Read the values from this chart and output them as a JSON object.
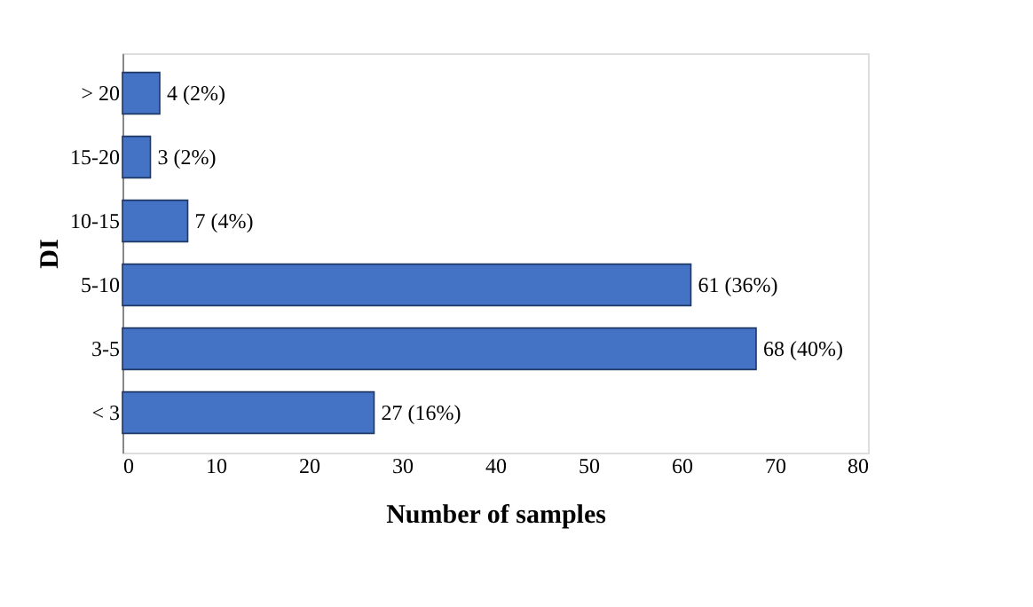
{
  "chart_data": {
    "type": "bar",
    "orientation": "horizontal",
    "ylabel": "DI",
    "xlabel": "Number of samples",
    "categories": [
      "> 20",
      "15-20",
      "10-15",
      "5-10",
      "3-5",
      "< 3"
    ],
    "values": [
      4,
      3,
      7,
      61,
      68,
      27
    ],
    "value_labels": [
      "4 (2%)",
      "3 (2%)",
      "7 (4%)",
      "61 (36%)",
      "68 (40%)",
      "27 (16%)"
    ],
    "color": "#4472c4",
    "xlim": [
      0,
      80
    ],
    "xticks": [
      0,
      10,
      20,
      30,
      40,
      50,
      60,
      70,
      80
    ]
  }
}
